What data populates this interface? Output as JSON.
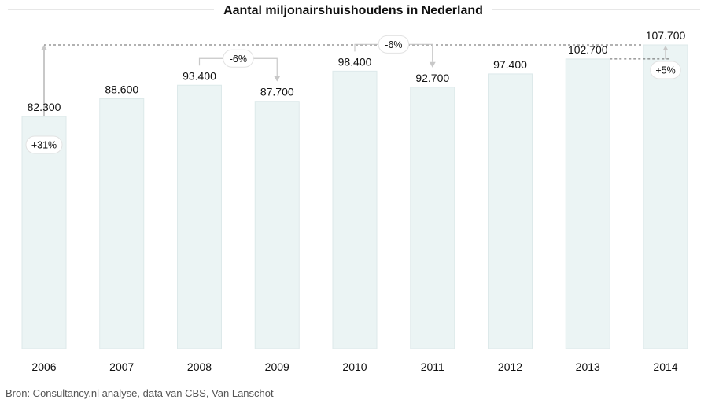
{
  "chart_data": {
    "type": "bar",
    "title": "Aantal miljonairshuishoudens in Nederland",
    "categories": [
      "2006",
      "2007",
      "2008",
      "2009",
      "2010",
      "2011",
      "2012",
      "2013",
      "2014"
    ],
    "values": [
      82300,
      88600,
      93400,
      87700,
      98400,
      92700,
      97400,
      102700,
      107700
    ],
    "value_labels": [
      "82.300",
      "88.600",
      "93.400",
      "87.700",
      "98.400",
      "92.700",
      "97.400",
      "102.700",
      "107.700"
    ],
    "ylim": [
      0,
      107700
    ],
    "grid": false,
    "colors": {
      "bar_fill": "#ebf4f4",
      "bar_stroke": "#dde9ea",
      "connector": "#c8c8c8",
      "dashed_line": "#666666",
      "axis": "#d0d0d0"
    },
    "annotations": [
      {
        "label": "+31%",
        "from": "2006",
        "to": "2014"
      },
      {
        "label": "-6%",
        "from": "2008",
        "to": "2009"
      },
      {
        "label": "-6%",
        "from": "2010",
        "to": "2011"
      },
      {
        "label": "+5%",
        "from": "2013",
        "to": "2014"
      }
    ]
  },
  "source": "Bron: Consultancy.nl analyse, data van CBS, Van Lanschot"
}
